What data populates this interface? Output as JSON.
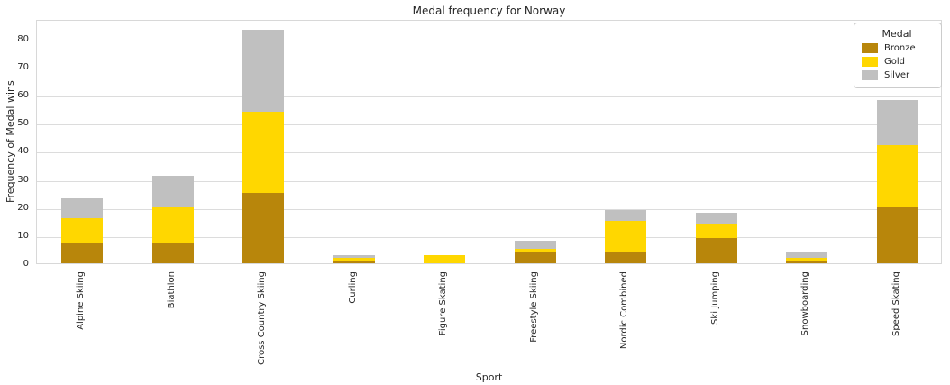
{
  "figure": {
    "title": "Medal frequency for Norway",
    "xlabel": "Sport",
    "ylabel": "Frequency of Medal wins"
  },
  "legend": {
    "title": "Medal"
  },
  "chart_data": {
    "type": "bar",
    "stacked": true,
    "title": "Medal frequency for Norway",
    "xlabel": "Sport",
    "ylabel": "Frequency of Medal wins",
    "categories": [
      "Alpine Skiing",
      "Biathlon",
      "Cross Country Skiing",
      "Curling",
      "Figure Skating",
      "Freestyle Skiing",
      "Nordic Combined",
      "Ski Jumping",
      "Snowboarding",
      "Speed Skating"
    ],
    "series": [
      {
        "name": "Bronze",
        "color": "#B8860B",
        "values": [
          7,
          7,
          25,
          1,
          0,
          4,
          4,
          9,
          1,
          20
        ]
      },
      {
        "name": "Gold",
        "color": "#FFD700",
        "values": [
          9,
          13,
          29,
          1,
          3,
          1,
          11,
          5,
          1,
          22
        ]
      },
      {
        "name": "Silver",
        "color": "#C0C0C0",
        "values": [
          7,
          11,
          29,
          1,
          0,
          3,
          4,
          4,
          2,
          16
        ]
      }
    ],
    "ylim": [
      0,
      87
    ],
    "yticks": [
      0,
      10,
      20,
      30,
      40,
      50,
      60,
      70,
      80
    ],
    "grid": true,
    "legend_title": "Medal",
    "legend_position": "upper right"
  }
}
